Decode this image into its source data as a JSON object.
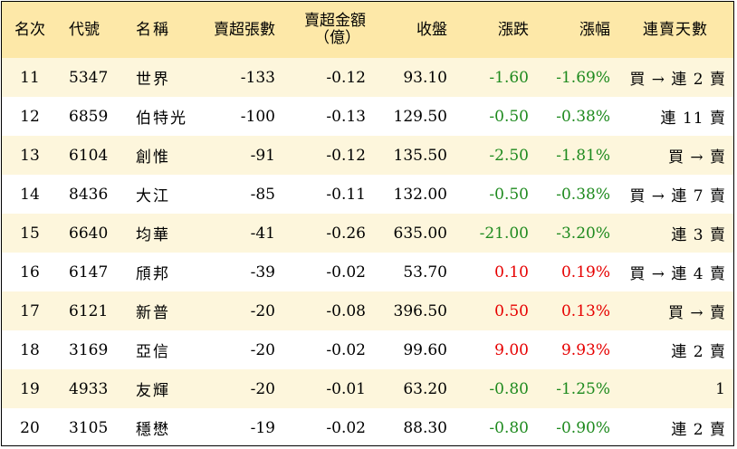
{
  "header": {
    "rank": "名次",
    "code": "代號",
    "name": "名稱",
    "sold_lots": "賣超張數",
    "sold_amount_line1": "賣超金額",
    "sold_amount_line2": "（億）",
    "close": "收盤",
    "change": "漲跌",
    "change_pct": "漲幅",
    "streak": "連賣天數"
  },
  "colors": {
    "header_bg": "#fde8a8",
    "odd_row_bg": "#fdf6dc",
    "negative": "#1e8a1e",
    "positive": "#e60000"
  },
  "rows": [
    {
      "rank": "11",
      "code": "5347",
      "name": "世界",
      "sold_lots": "-133",
      "sold_amount": "-0.12",
      "close": "93.10",
      "change": "-1.60",
      "change_pct": "-1.69%",
      "streak": "買 → 連 2 賣",
      "dir": "neg"
    },
    {
      "rank": "12",
      "code": "6859",
      "name": "伯特光",
      "sold_lots": "-100",
      "sold_amount": "-0.13",
      "close": "129.50",
      "change": "-0.50",
      "change_pct": "-0.38%",
      "streak": "連 11 賣",
      "dir": "neg"
    },
    {
      "rank": "13",
      "code": "6104",
      "name": "創惟",
      "sold_lots": "-91",
      "sold_amount": "-0.12",
      "close": "135.50",
      "change": "-2.50",
      "change_pct": "-1.81%",
      "streak": "買 → 賣",
      "dir": "neg"
    },
    {
      "rank": "14",
      "code": "8436",
      "name": "大江",
      "sold_lots": "-85",
      "sold_amount": "-0.11",
      "close": "132.00",
      "change": "-0.50",
      "change_pct": "-0.38%",
      "streak": "買 → 連 7 賣",
      "dir": "neg"
    },
    {
      "rank": "15",
      "code": "6640",
      "name": "均華",
      "sold_lots": "-41",
      "sold_amount": "-0.26",
      "close": "635.00",
      "change": "-21.00",
      "change_pct": "-3.20%",
      "streak": "連 3 賣",
      "dir": "neg"
    },
    {
      "rank": "16",
      "code": "6147",
      "name": "頎邦",
      "sold_lots": "-39",
      "sold_amount": "-0.02",
      "close": "53.70",
      "change": "0.10",
      "change_pct": "0.19%",
      "streak": "買 → 連 4 賣",
      "dir": "pos"
    },
    {
      "rank": "17",
      "code": "6121",
      "name": "新普",
      "sold_lots": "-20",
      "sold_amount": "-0.08",
      "close": "396.50",
      "change": "0.50",
      "change_pct": "0.13%",
      "streak": "買 → 賣",
      "dir": "pos"
    },
    {
      "rank": "18",
      "code": "3169",
      "name": "亞信",
      "sold_lots": "-20",
      "sold_amount": "-0.02",
      "close": "99.60",
      "change": "9.00",
      "change_pct": "9.93%",
      "streak": "連 2 賣",
      "dir": "pos"
    },
    {
      "rank": "19",
      "code": "4933",
      "name": "友輝",
      "sold_lots": "-20",
      "sold_amount": "-0.01",
      "close": "63.20",
      "change": "-0.80",
      "change_pct": "-1.25%",
      "streak": "1",
      "dir": "neg"
    },
    {
      "rank": "20",
      "code": "3105",
      "name": "穩懋",
      "sold_lots": "-19",
      "sold_amount": "-0.02",
      "close": "88.30",
      "change": "-0.80",
      "change_pct": "-0.90%",
      "streak": "連 2 賣",
      "dir": "neg"
    }
  ]
}
